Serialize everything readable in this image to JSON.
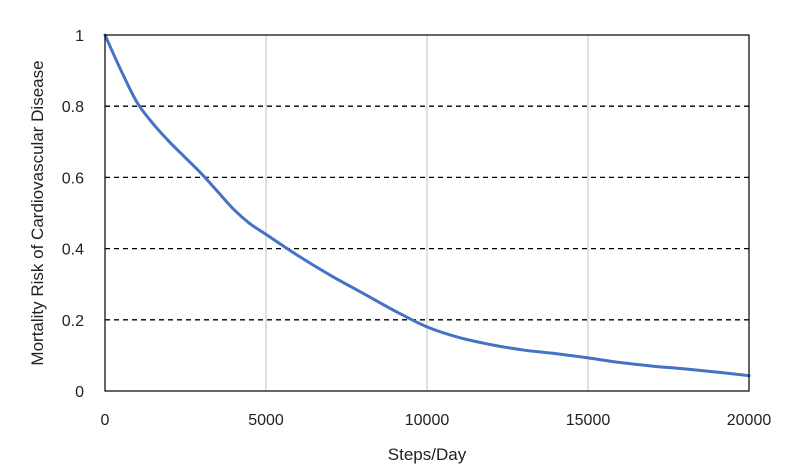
{
  "chart_data": {
    "type": "line",
    "xlabel": "Steps/Day",
    "ylabel": "Mortality Risk of Cardiovascular Disease",
    "xlim": [
      0,
      20000
    ],
    "ylim": [
      0,
      1
    ],
    "x_ticks": [
      "0",
      "5000",
      "10000",
      "15000",
      "20000"
    ],
    "y_ticks": [
      "0",
      "0.2",
      "0.4",
      "0.6",
      "0.8",
      "1"
    ],
    "grid": {
      "vertical": "light gray solid",
      "horizontal": "black dashed"
    },
    "series": [
      {
        "color": "#4472C4",
        "x": [
          0,
          500,
          1000,
          1500,
          2000,
          2500,
          3000,
          3500,
          4000,
          4500,
          5000,
          6000,
          7000,
          8000,
          9000,
          10000,
          11000,
          12000,
          13000,
          14000,
          15000,
          16000,
          17000,
          18000,
          19000,
          20000
        ],
        "y": [
          1.0,
          0.9,
          0.81,
          0.75,
          0.7,
          0.655,
          0.61,
          0.56,
          0.51,
          0.47,
          0.44,
          0.38,
          0.325,
          0.275,
          0.225,
          0.18,
          0.15,
          0.13,
          0.115,
          0.105,
          0.093,
          0.08,
          0.07,
          0.062,
          0.053,
          0.043
        ]
      }
    ]
  }
}
